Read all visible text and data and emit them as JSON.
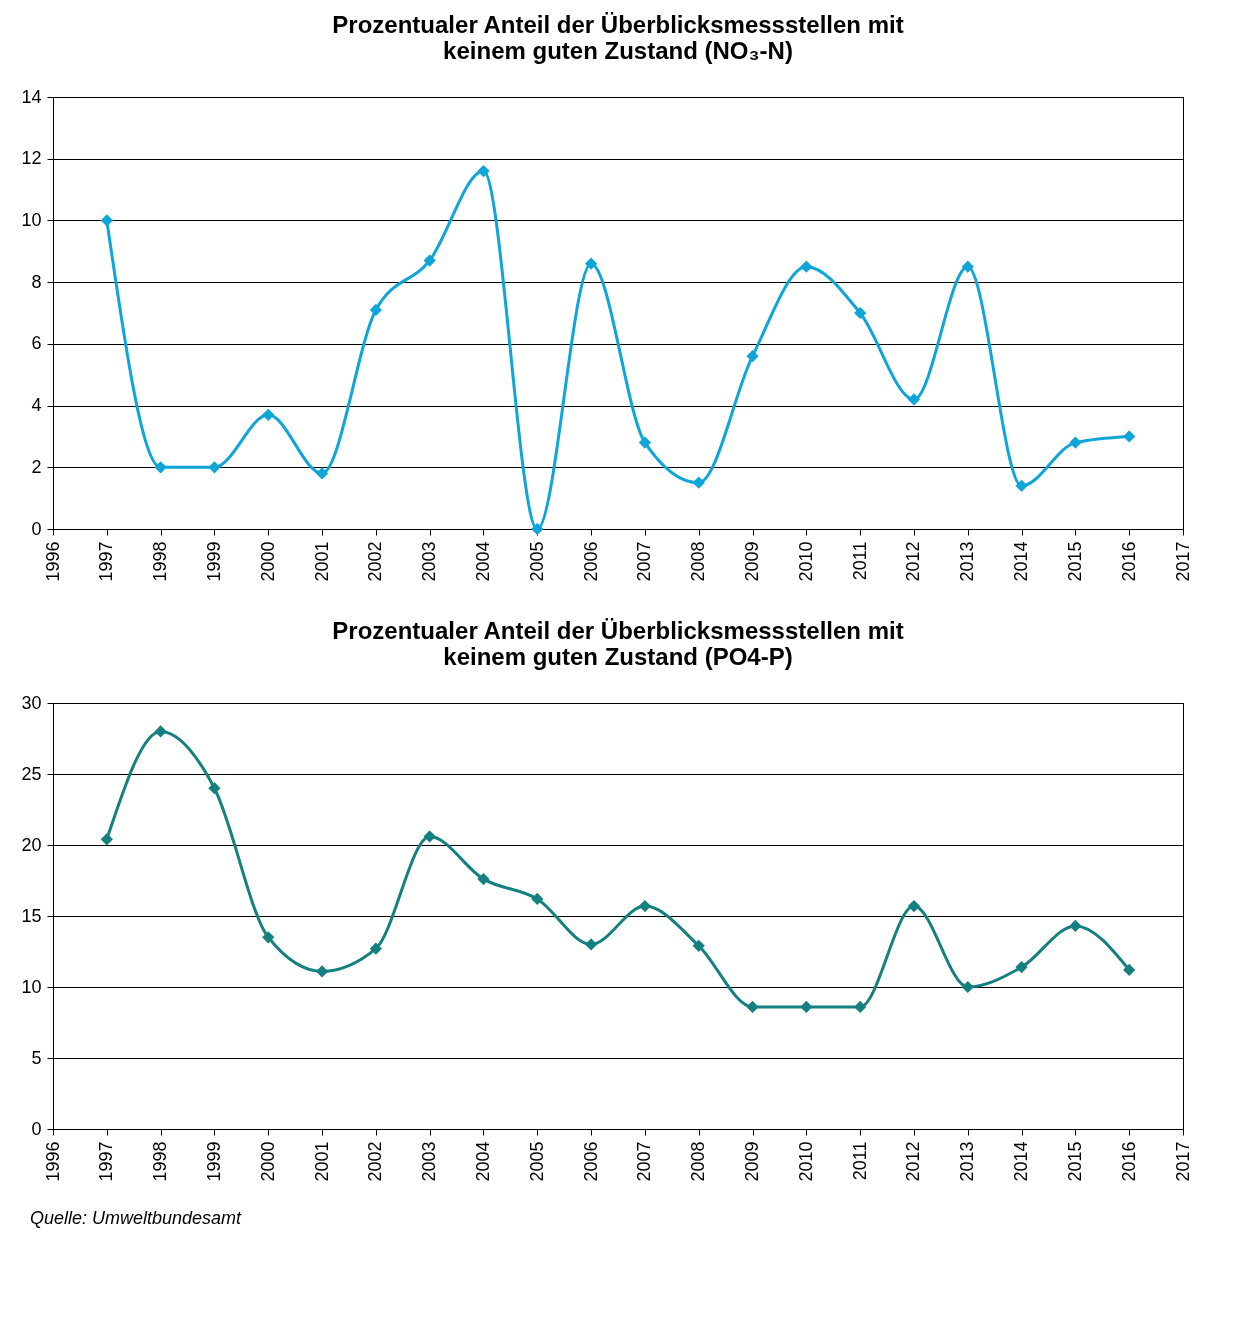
{
  "chart_data": [
    {
      "type": "line",
      "title": "Prozentualer Anteil der Überblicksmessstellen mit keinem guten Zustand (NO₃-N)",
      "x": [
        1997,
        1998,
        1999,
        2000,
        2001,
        2002,
        2003,
        2004,
        2005,
        2006,
        2007,
        2008,
        2009,
        2010,
        2011,
        2012,
        2013,
        2014,
        2015,
        2016
      ],
      "series": [
        {
          "color": "#0ea5d8",
          "values": [
            10,
            2.0,
            2.0,
            3.7,
            1.8,
            7.1,
            8.7,
            11.6,
            0,
            8.6,
            2.8,
            1.5,
            5.6,
            8.5,
            7.0,
            4.2,
            8.5,
            1.4,
            2.8,
            3.0
          ]
        }
      ],
      "xlim": [
        1996,
        2017
      ],
      "xticks": [
        1996,
        1997,
        1998,
        1999,
        2000,
        2001,
        2002,
        2003,
        2004,
        2005,
        2006,
        2007,
        2008,
        2009,
        2010,
        2011,
        2012,
        2013,
        2014,
        2015,
        2016,
        2017
      ],
      "ylim": [
        0,
        14
      ],
      "yticks": [
        0,
        2,
        4,
        6,
        8,
        10,
        12,
        14
      ],
      "grid": "y",
      "marker": "diamond",
      "legend": false
    },
    {
      "type": "line",
      "title": "Prozentualer Anteil der Überblicksmessstellen mit keinem guten Zustand (PO4-P)",
      "x": [
        1997,
        1998,
        1999,
        2000,
        2001,
        2002,
        2003,
        2004,
        2005,
        2006,
        2007,
        2008,
        2009,
        2010,
        2011,
        2012,
        2013,
        2014,
        2015,
        2016
      ],
      "series": [
        {
          "color": "#158080",
          "values": [
            20.4,
            28,
            24,
            13.5,
            11.1,
            12.7,
            20.6,
            17.6,
            16.2,
            13.0,
            15.7,
            12.9,
            8.6,
            8.6,
            8.6,
            15.7,
            10.0,
            11.4,
            14.3,
            11.2
          ]
        }
      ],
      "xlim": [
        1996,
        2017
      ],
      "xticks": [
        1996,
        1997,
        1998,
        1999,
        2000,
        2001,
        2002,
        2003,
        2004,
        2005,
        2006,
        2007,
        2008,
        2009,
        2010,
        2011,
        2012,
        2013,
        2014,
        2015,
        2016,
        2017
      ],
      "ylim": [
        0,
        30
      ],
      "yticks": [
        0,
        5,
        10,
        15,
        20,
        25,
        30
      ],
      "grid": "y",
      "marker": "diamond",
      "legend": false,
      "annotations": [
        "Quelle: Umweltbundesamt"
      ]
    }
  ]
}
